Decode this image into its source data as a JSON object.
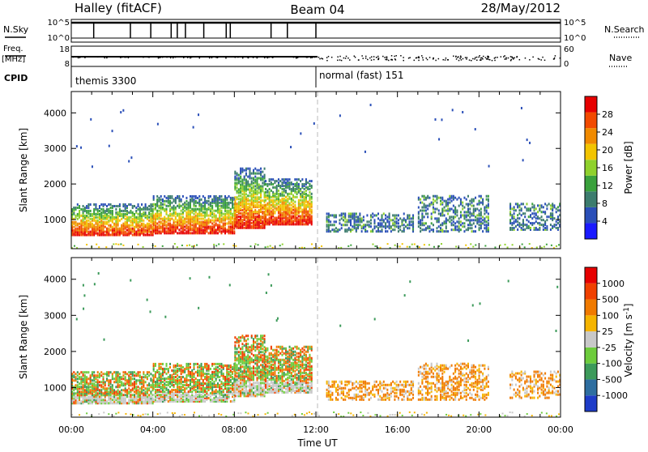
{
  "header": {
    "station": "Halley (fitACF)",
    "beam": "Beam 04",
    "date": "28/May/2012"
  },
  "strip": {
    "nsky_label": "N.Sky",
    "nsky_ticks": [
      "10^5",
      "10^0"
    ],
    "nsearch_label": "N.Search",
    "nsearch_ticks": [
      "10^5",
      "10^0"
    ],
    "freq_label": "Freq.",
    "freq_unit": "[MHz]",
    "freq_ticks": [
      "18",
      "8"
    ],
    "nave_label": "Nave",
    "nave_ticks": [
      "60",
      "0"
    ],
    "cpid_label": "CPID",
    "cpid_segments": [
      {
        "name": "themis 3300",
        "start_hour": 0,
        "end_hour": 12
      },
      {
        "name": "normal (fast) 151",
        "start_hour": 12,
        "end_hour": 24
      }
    ],
    "noise_event_hours": [
      1.1,
      2.9,
      3.9,
      4.9,
      5.2,
      5.6,
      6.5,
      7.6,
      7.8,
      9.8,
      10.6,
      12.0
    ]
  },
  "chart_data": [
    {
      "type": "heatmap",
      "name": "power-panel",
      "ylabel": "Slant Range [km]",
      "xlabel": "",
      "xlim": [
        0,
        24
      ],
      "ylim": [
        180,
        4600
      ],
      "yticks": [
        1000,
        2000,
        3000,
        4000
      ],
      "xticks": [
        "00:00",
        "04:00",
        "08:00",
        "12:00",
        "16:00",
        "20:00",
        "00:00"
      ],
      "colorbar_label": "Power [dB]",
      "colorbar_ticks": [
        "4",
        "8",
        "12",
        "16",
        "20",
        "24",
        "28"
      ],
      "colorbar_colors": [
        "#1a1aff",
        "#2a4fb8",
        "#3c7c6e",
        "#3aa13c",
        "#8fd12c",
        "#f2c400",
        "#f08a00",
        "#f24a00",
        "#e60000"
      ],
      "regions": [
        {
          "from_hour": 0.0,
          "to_hour": 4.0,
          "range_low_km": 600,
          "range_high_km": 1500
        },
        {
          "from_hour": 4.0,
          "to_hour": 8.0,
          "range_low_km": 650,
          "range_high_km": 1700
        },
        {
          "from_hour": 8.0,
          "to_hour": 9.5,
          "range_low_km": 800,
          "range_high_km": 2500
        },
        {
          "from_hour": 9.5,
          "to_hour": 11.8,
          "range_low_km": 900,
          "range_high_km": 2200
        },
        {
          "from_hour": 12.5,
          "to_hour": 16.8,
          "range_low_km": 700,
          "range_high_km": 1200
        },
        {
          "from_hour": 17.0,
          "to_hour": 20.5,
          "range_low_km": 700,
          "range_high_km": 1700
        },
        {
          "from_hour": 21.5,
          "to_hour": 24.0,
          "range_low_km": 750,
          "range_high_km": 1500
        }
      ]
    },
    {
      "type": "heatmap",
      "name": "velocity-panel",
      "ylabel": "Slant Range [km]",
      "xlabel": "Time UT",
      "xlim": [
        0,
        24
      ],
      "ylim": [
        180,
        4600
      ],
      "yticks": [
        1000,
        2000,
        3000,
        4000
      ],
      "xticks": [
        "00:00",
        "04:00",
        "08:00",
        "12:00",
        "16:00",
        "20:00",
        "00:00"
      ],
      "colorbar_label": "Velocity [m s^-1]",
      "colorbar_ticks": [
        "1000",
        "500",
        "100",
        "25",
        "-25",
        "-100",
        "-500",
        "-1000"
      ],
      "colorbar_colors": [
        "#1e3cc8",
        "#2e6ea0",
        "#3c9a5a",
        "#6dcc3c",
        "#c8c8c8",
        "#f5b400",
        "#f07a00",
        "#f04000",
        "#e60000"
      ],
      "regions": [
        {
          "from_hour": 0.0,
          "to_hour": 4.0,
          "range_low_km": 600,
          "range_high_km": 1500
        },
        {
          "from_hour": 4.0,
          "to_hour": 8.0,
          "range_low_km": 650,
          "range_high_km": 1700
        },
        {
          "from_hour": 8.0,
          "to_hour": 9.5,
          "range_low_km": 800,
          "range_high_km": 2500
        },
        {
          "from_hour": 9.5,
          "to_hour": 11.8,
          "range_low_km": 900,
          "range_high_km": 2200
        },
        {
          "from_hour": 12.5,
          "to_hour": 16.8,
          "range_low_km": 700,
          "range_high_km": 1200
        },
        {
          "from_hour": 17.0,
          "to_hour": 20.5,
          "range_low_km": 700,
          "range_high_km": 1700
        },
        {
          "from_hour": 21.5,
          "to_hour": 24.0,
          "range_low_km": 750,
          "range_high_km": 1500
        }
      ]
    }
  ]
}
